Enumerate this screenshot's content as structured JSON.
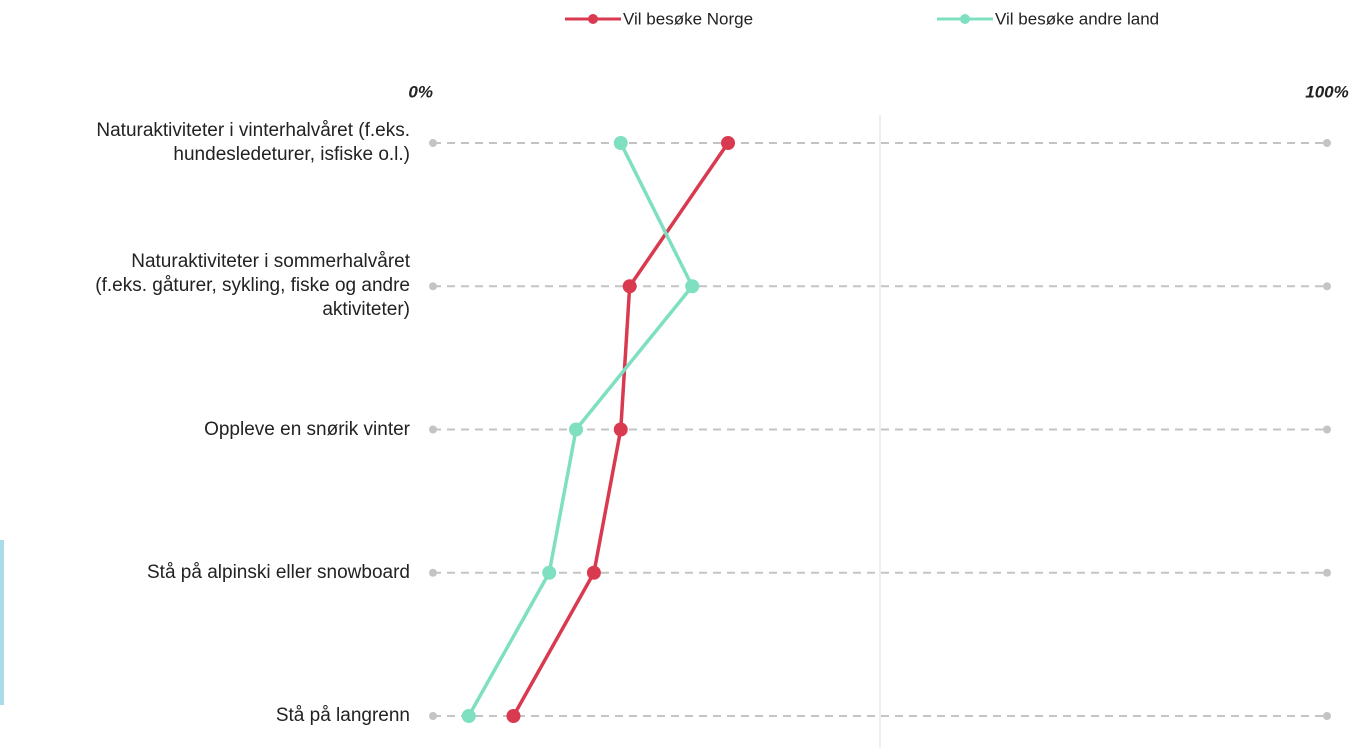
{
  "chart_data": {
    "type": "dot-line",
    "categories": [
      "Naturaktiviteter i vinterhalvåret (f.eks.\nhundesledeturer, isfiske o.l.)",
      "Naturaktiviteter i sommerhalvåret\n(f.eks. gåturer, sykling, fiske og andre\naktiviteter)",
      "Oppleve en snørik vinter",
      "Stå på alpinski eller snowboard",
      "Stå på langrenn"
    ],
    "series": [
      {
        "name": "Vil besøke Norge",
        "color": "#d93a50",
        "values": [
          33,
          22,
          21,
          18,
          9
        ]
      },
      {
        "name": "Vil besøke andre land",
        "color": "#7fe0c1",
        "values": [
          21,
          29,
          16,
          13,
          4
        ]
      }
    ],
    "xlim": [
      0,
      100
    ],
    "xticks": [
      {
        "value": 0,
        "label": "0%"
      },
      {
        "value": 100,
        "label": "100%"
      }
    ],
    "gridlines": [
      50
    ],
    "legend": "top"
  }
}
